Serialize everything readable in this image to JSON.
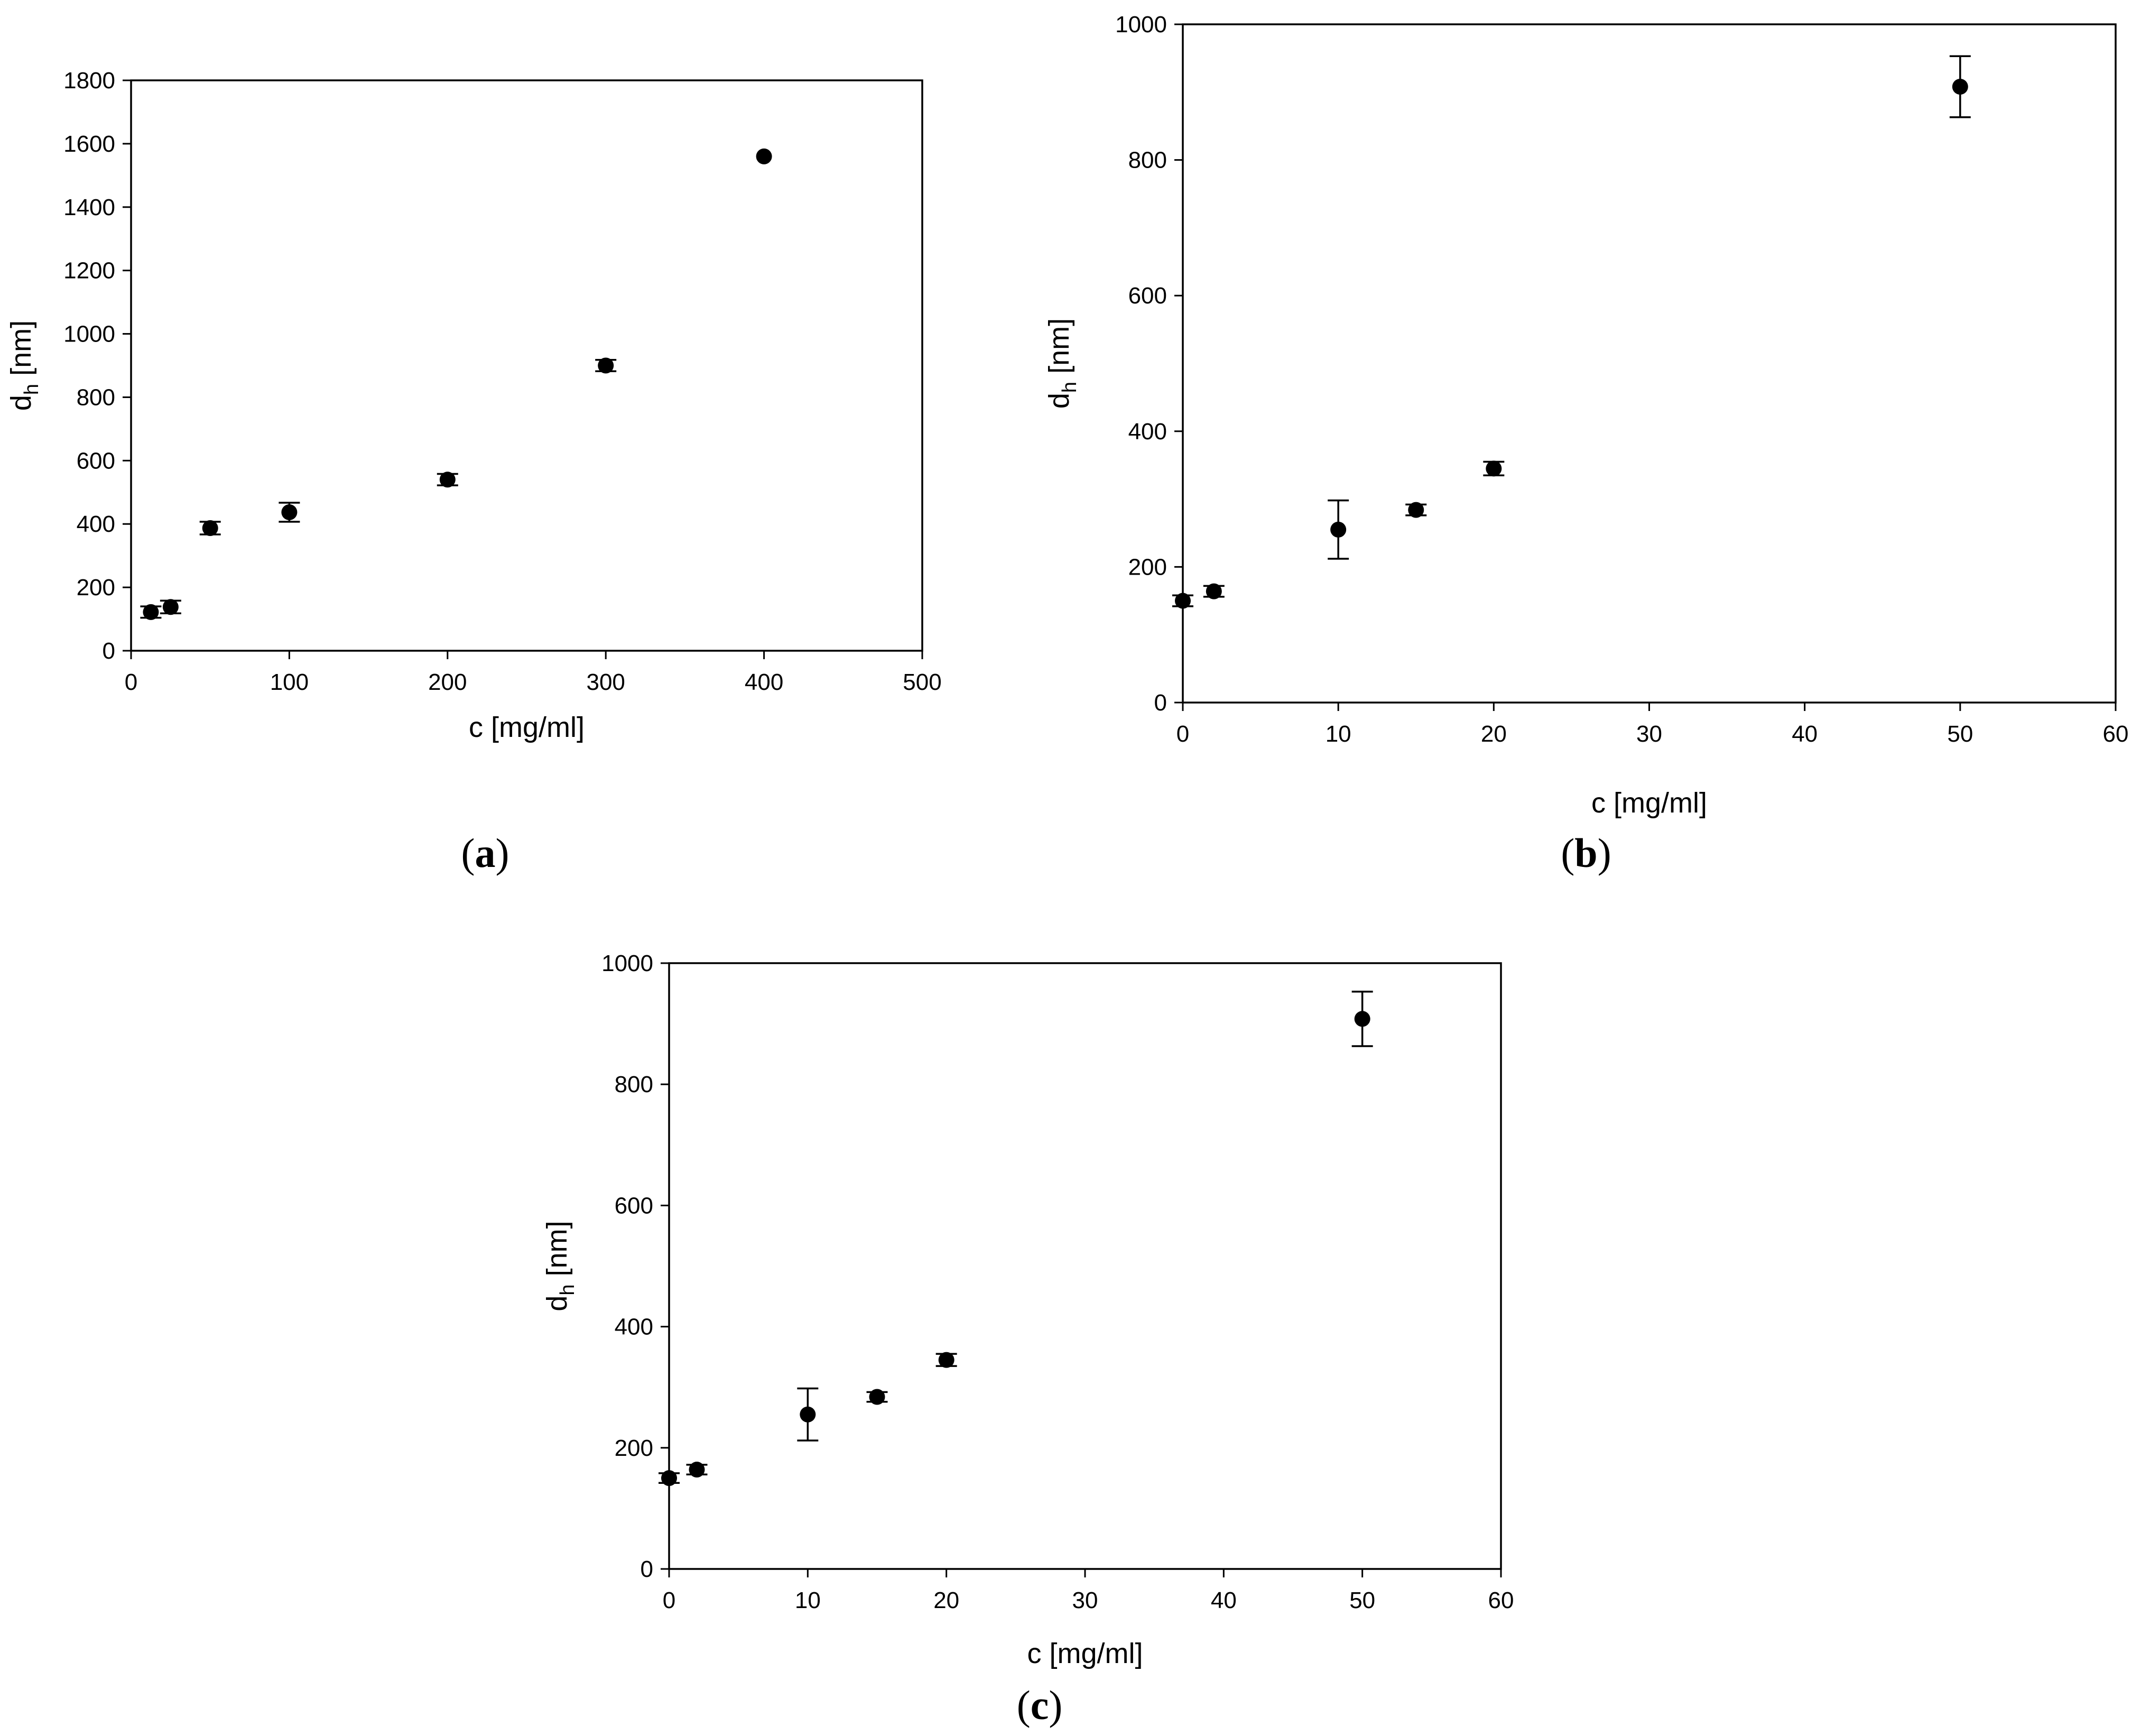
{
  "chart_data": [
    {
      "type": "scatter",
      "panel_label": "a",
      "xlabel": "c [mg/ml]",
      "ylabel_main": "d",
      "ylabel_sub": "h",
      "ylabel_unit": " [nm]",
      "xlim": [
        0,
        500
      ],
      "ylim": [
        0,
        1800
      ],
      "xticks": [
        0,
        100,
        200,
        300,
        400,
        500
      ],
      "yticks": [
        0,
        200,
        400,
        600,
        800,
        1000,
        1200,
        1400,
        1600,
        1800
      ],
      "grid": false,
      "points": [
        {
          "x": 12.5,
          "y": 122,
          "err": 18
        },
        {
          "x": 25,
          "y": 138,
          "err": 20
        },
        {
          "x": 50,
          "y": 387,
          "err": 20
        },
        {
          "x": 100,
          "y": 437,
          "err": 30
        },
        {
          "x": 200,
          "y": 540,
          "err": 18
        },
        {
          "x": 300,
          "y": 900,
          "err": 18
        },
        {
          "x": 400,
          "y": 1560,
          "err": 0
        }
      ]
    },
    {
      "type": "scatter",
      "panel_label": "b",
      "xlabel": "c [mg/ml]",
      "ylabel_main": "d",
      "ylabel_sub": "h",
      "ylabel_unit": " [nm]",
      "xlim": [
        0,
        60
      ],
      "ylim": [
        0,
        1000
      ],
      "xticks": [
        0,
        10,
        20,
        30,
        40,
        50,
        60
      ],
      "yticks": [
        0,
        200,
        400,
        600,
        800,
        1000
      ],
      "grid": false,
      "points": [
        {
          "x": 0,
          "y": 150,
          "err": 8
        },
        {
          "x": 2,
          "y": 164,
          "err": 8
        },
        {
          "x": 10,
          "y": 255,
          "err": 43
        },
        {
          "x": 15,
          "y": 284,
          "err": 8
        },
        {
          "x": 20,
          "y": 345,
          "err": 10
        },
        {
          "x": 50,
          "y": 908,
          "err": 45
        }
      ]
    },
    {
      "type": "scatter",
      "panel_label": "c",
      "xlabel": "c [mg/ml]",
      "ylabel_main": "d",
      "ylabel_sub": "h",
      "ylabel_unit": " [nm]",
      "xlim": [
        0,
        60
      ],
      "ylim": [
        0,
        1000
      ],
      "xticks": [
        0,
        10,
        20,
        30,
        40,
        50,
        60
      ],
      "yticks": [
        0,
        200,
        400,
        600,
        800,
        1000
      ],
      "grid": false,
      "points": [
        {
          "x": 0,
          "y": 150,
          "err": 8
        },
        {
          "x": 2,
          "y": 164,
          "err": 8
        },
        {
          "x": 10,
          "y": 255,
          "err": 43
        },
        {
          "x": 15,
          "y": 284,
          "err": 8
        },
        {
          "x": 20,
          "y": 345,
          "err": 10
        },
        {
          "x": 50,
          "y": 908,
          "err": 45
        }
      ]
    }
  ]
}
